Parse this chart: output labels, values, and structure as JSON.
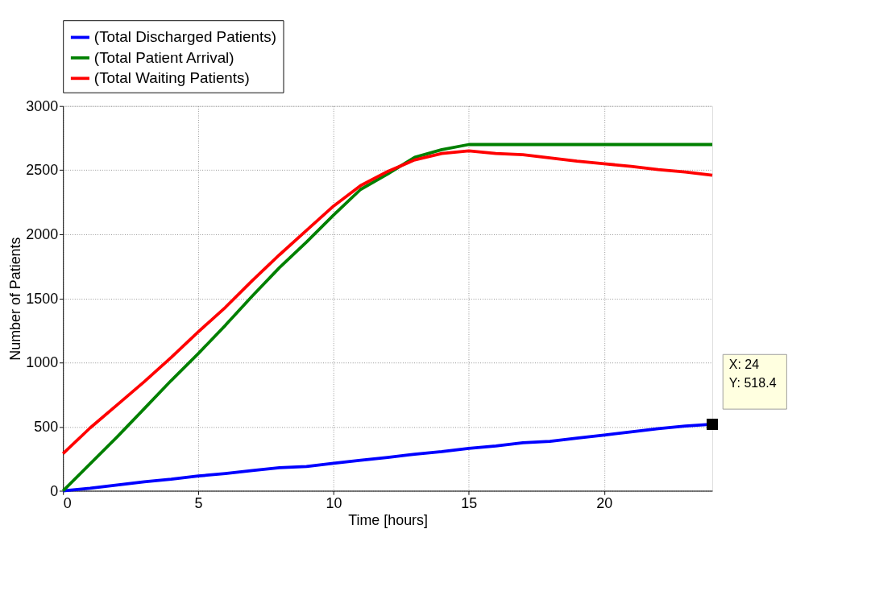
{
  "chart_data": {
    "type": "line",
    "xlabel": "Time [hours]",
    "ylabel": "Number of Patients",
    "x": [
      0,
      1,
      2,
      3,
      4,
      5,
      6,
      7,
      8,
      9,
      10,
      11,
      12,
      13,
      14,
      15,
      16,
      17,
      18,
      19,
      20,
      21,
      22,
      23,
      24
    ],
    "series": [
      {
        "name": "(Total Discharged Patients)",
        "color": "#0000ff",
        "values": [
          0,
          20,
          45,
          70,
          90,
          115,
          135,
          158,
          180,
          190,
          215,
          238,
          260,
          285,
          305,
          330,
          350,
          375,
          385,
          410,
          435,
          460,
          485,
          505,
          518.4
        ]
      },
      {
        "name": "(Total Patient Arrival)",
        "color": "#008000",
        "values": [
          0,
          210,
          420,
          640,
          860,
          1070,
          1290,
          1520,
          1740,
          1940,
          2150,
          2350,
          2470,
          2600,
          2660,
          2700,
          2700,
          2700,
          2700,
          2700,
          2700,
          2700,
          2700,
          2700,
          2700
        ]
      },
      {
        "name": "(Total Waiting Patients)",
        "color": "#ff0000",
        "values": [
          290,
          490,
          670,
          850,
          1040,
          1240,
          1430,
          1640,
          1840,
          2030,
          2220,
          2380,
          2490,
          2580,
          2630,
          2650,
          2630,
          2620,
          2595,
          2570,
          2550,
          2530,
          2505,
          2485,
          2460
        ]
      }
    ],
    "xlim": [
      0,
      24
    ],
    "xticks": [
      0,
      5,
      10,
      15,
      20
    ],
    "ylim": [
      0,
      3000
    ],
    "yticks": [
      0,
      500,
      1000,
      1500,
      2000,
      2500,
      3000
    ],
    "grid": true,
    "legend": "top",
    "marker": "none",
    "line_style": "solid",
    "annotations": [
      {
        "text": "X: 24\nY: 518.4",
        "x": 24,
        "y": 518.4
      }
    ]
  }
}
